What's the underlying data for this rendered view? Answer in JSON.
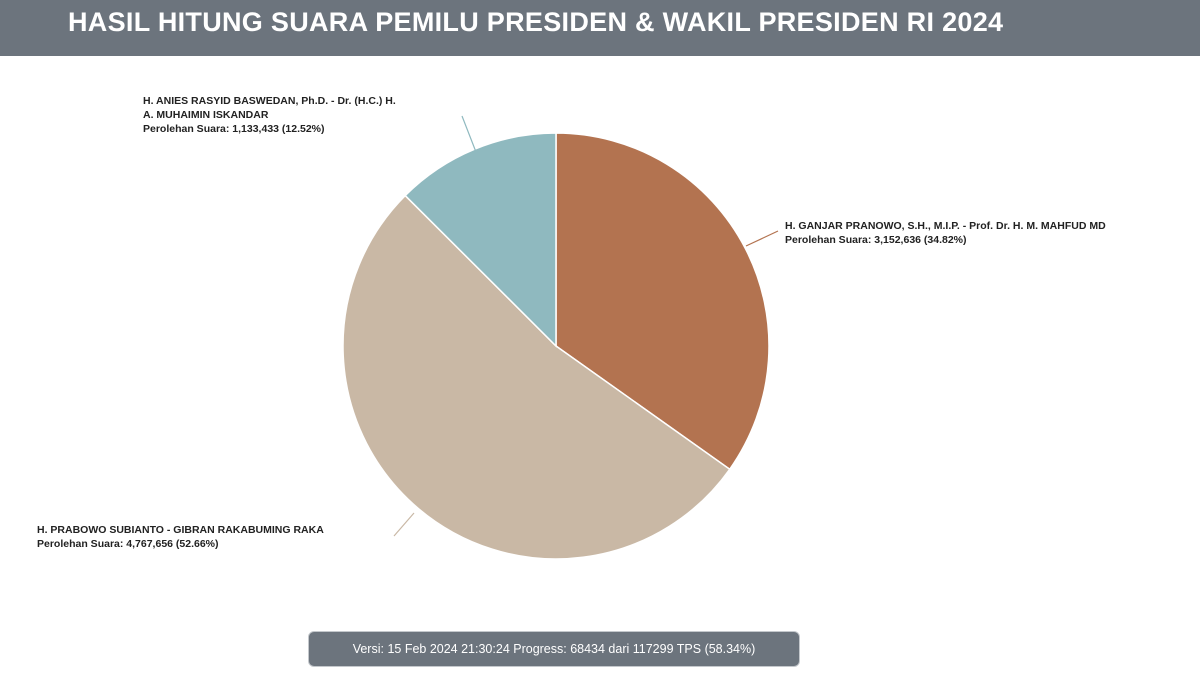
{
  "header": {
    "title": "HASIL HITUNG SUARA PEMILU PRESIDEN & WAKIL PRESIDEN RI 2024"
  },
  "chart_data": {
    "type": "pie",
    "title": "HASIL HITUNG SUARA PEMILU PRESIDEN & WAKIL PRESIDEN RI 2024",
    "slices": [
      {
        "name_lines": [
          "H. GANJAR PRANOWO, S.H., M.I.P. - Prof. Dr. H. M. MAHFUD MD"
        ],
        "votes_text": "Perolehan Suara: 3,152,636 (34.82%)",
        "value": 3152636,
        "percent": 34.82,
        "color": "#b37350"
      },
      {
        "name_lines": [
          "H. PRABOWO SUBIANTO - GIBRAN RAKABUMING RAKA"
        ],
        "votes_text": "Perolehan Suara: 4,767,656 (52.66%)",
        "value": 4767656,
        "percent": 52.66,
        "color": "#c9b8a5"
      },
      {
        "name_lines": [
          "H. ANIES RASYID BASWEDAN, Ph.D. - Dr. (H.C.) H.",
          "A. MUHAIMIN ISKANDAR"
        ],
        "votes_text": "Perolehan Suara: 1,133,433 (12.52%)",
        "value": 1133433,
        "percent": 12.52,
        "color": "#8fb9bf"
      }
    ],
    "start_angle": "12 o'clock",
    "direction": "clockwise",
    "legend": "none"
  },
  "footer": {
    "status_text": "Versi: 15 Feb 2024 21:30:24 Progress: 68434 dari 117299 TPS (58.34%)"
  }
}
